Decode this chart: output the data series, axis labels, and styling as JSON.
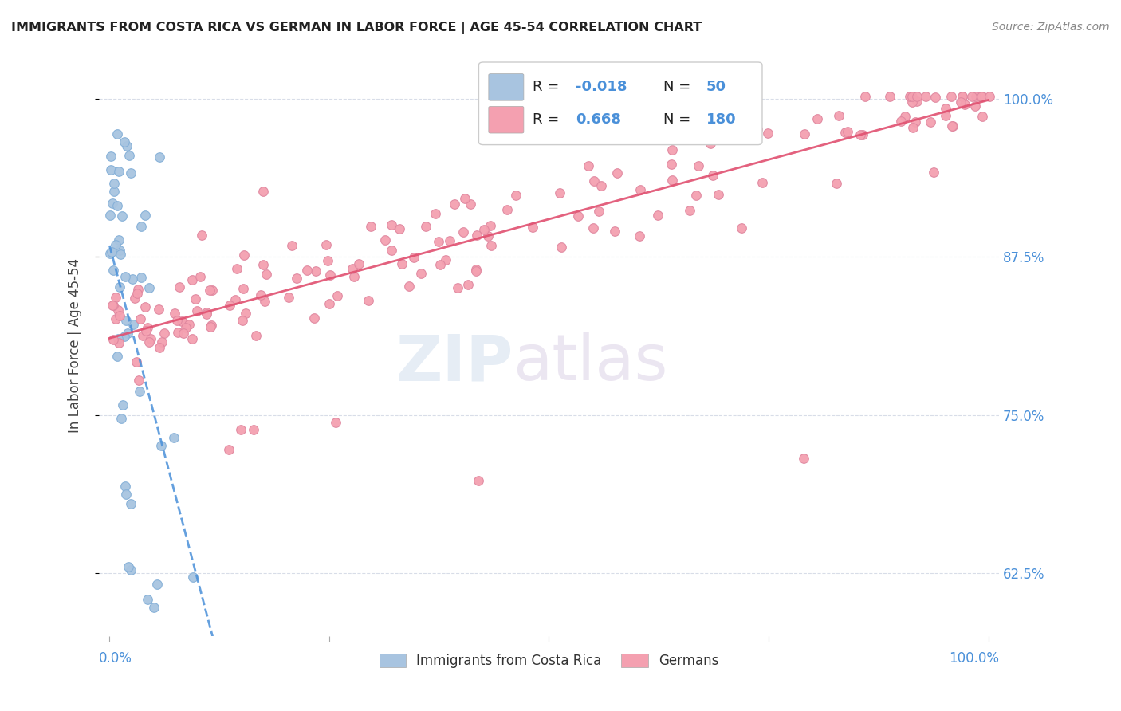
{
  "title": "IMMIGRANTS FROM COSTA RICA VS GERMAN IN LABOR FORCE | AGE 45-54 CORRELATION CHART",
  "source": "Source: ZipAtlas.com",
  "ylabel": "In Labor Force | Age 45-54",
  "ytick_labels": [
    "62.5%",
    "75.0%",
    "87.5%",
    "100.0%"
  ],
  "ytick_values": [
    0.625,
    0.75,
    0.875,
    1.0
  ],
  "xlim": [
    0.0,
    1.0
  ],
  "ylim": [
    0.575,
    1.035
  ],
  "legend_r_blue": "-0.018",
  "legend_n_blue": "50",
  "legend_r_pink": "0.668",
  "legend_n_pink": "180",
  "blue_color": "#a8c4e0",
  "pink_color": "#f4a0b0",
  "blue_line_color": "#4a90d9",
  "pink_line_color": "#e05070",
  "background_color": "#ffffff",
  "grid_color": "#d8dde8",
  "tick_color": "#4a90d9",
  "title_color": "#222222",
  "source_color": "#888888",
  "label_color": "#444444"
}
